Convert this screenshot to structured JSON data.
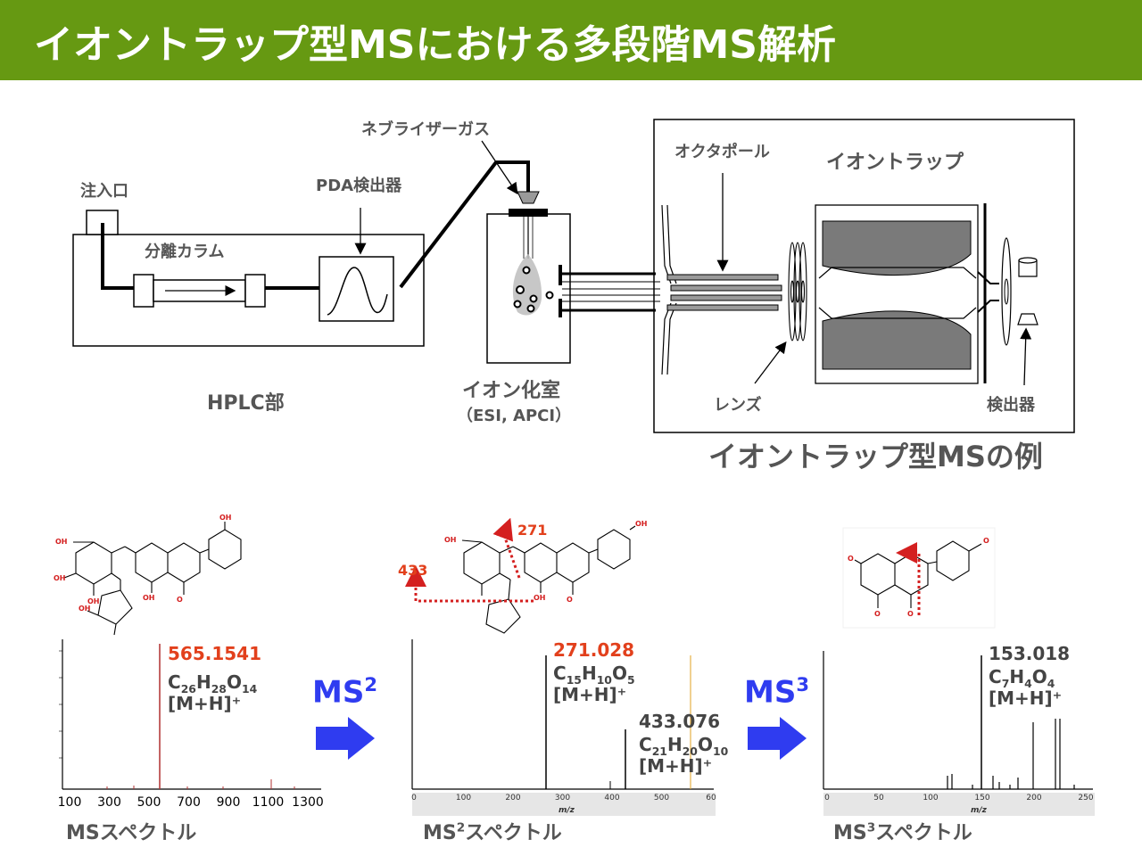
{
  "title": "イオントラップ型MSにおける多段階MS解析",
  "hplc": {
    "injection_port": "注入口",
    "column": "分離カラム",
    "pda": "PDA検出器",
    "label": "HPLC部"
  },
  "ion_source": {
    "nebulizer": "ネブライザーガス",
    "chamber": "イオン化室",
    "methods": "（ESI, APCI）"
  },
  "ion_trap": {
    "octapole": "オクタポール",
    "trap": "イオントラップ",
    "lens": "レンズ",
    "detector": "検出器",
    "caption": "イオントラップ型MSの例"
  },
  "ms2_arrow": {
    "base": "MS",
    "sup": "2"
  },
  "ms3_arrow": {
    "base": "MS",
    "sup": "3"
  },
  "spectrum1": {
    "peak_mz": "565.1541",
    "formula": {
      "c": "26",
      "h": "28",
      "o": "14"
    },
    "adduct": "[M+H]⁺",
    "axis_ticks": [
      "100",
      "300",
      "500",
      "700",
      "900",
      "1100",
      "1300"
    ],
    "label": "MSスペクトル"
  },
  "spectrum2": {
    "fragment_labels": [
      "271",
      "433"
    ],
    "peak1_mz": "271.028",
    "peak1_formula": {
      "c": "15",
      "h": "10",
      "o": "5"
    },
    "peak1_adduct": "[M+H]⁺",
    "peak2_mz": "433.076",
    "peak2_formula": {
      "c": "21",
      "h": "20",
      "o": "10"
    },
    "peak2_adduct": "[M+H]⁺",
    "axis_ticks": [
      "0",
      "100",
      "200",
      "300",
      "400",
      "500",
      "60"
    ],
    "axis_label": "m/z",
    "label_base": "MS",
    "label_sup": "2",
    "label_rest": "スペクトル"
  },
  "spectrum3": {
    "peak_mz": "153.018",
    "formula": {
      "c": "7",
      "h": "4",
      "o": "4"
    },
    "adduct": "[M+H]⁺",
    "axis_ticks": [
      "0",
      "50",
      "100",
      "150",
      "200",
      "250"
    ],
    "axis_label": "m/z",
    "label_base": "MS",
    "label_sup": "3",
    "label_rest": "スペクトル"
  },
  "molecule_atoms": {
    "oh": "OH",
    "o": "O"
  },
  "colors": {
    "title_bg": "#669912",
    "accent_red": "#e2401c",
    "arrow_blue": "#2f3cf0",
    "gray_text": "#555555"
  }
}
